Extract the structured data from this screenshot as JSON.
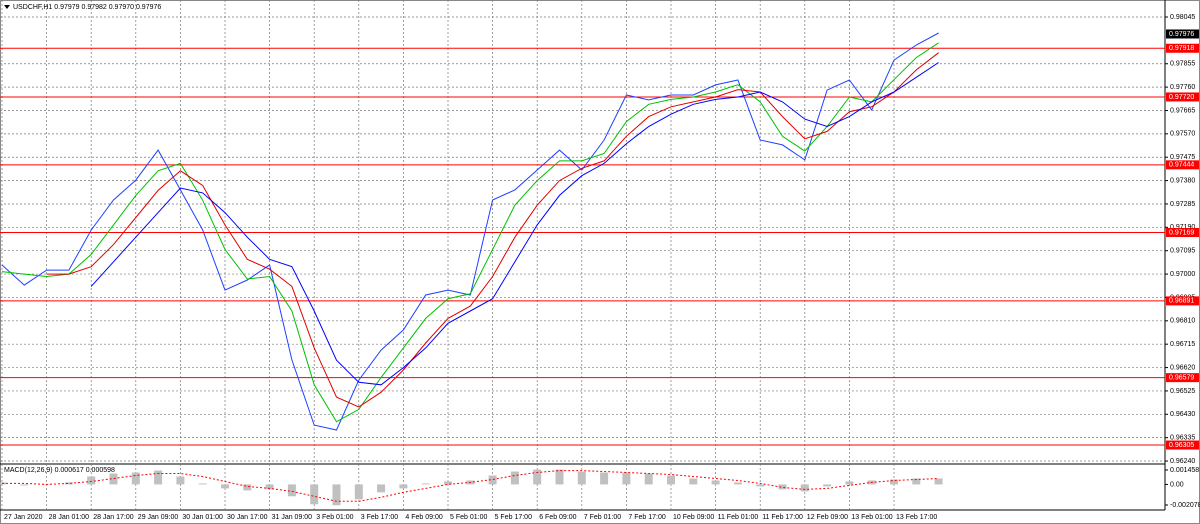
{
  "chart_data": [
    {
      "type": "line",
      "title": "USDCHF,H1  0.97979 0.97982 0.97970 0.97976",
      "categories": [
        "27 Jan 2020",
        null,
        "28 Jan 01:00",
        null,
        "28 Jan 17:00",
        null,
        "29 Jan 09:00",
        null,
        "30 Jan 01:00",
        null,
        "30 Jan 17:00",
        null,
        "31 Jan 09:00",
        null,
        "3 Feb 01:00",
        null,
        "3 Feb 17:00",
        null,
        "4 Feb 09:00",
        null,
        "5 Feb 01:00",
        null,
        "5 Feb 17:00",
        null,
        "6 Feb 09:00",
        null,
        "7 Feb 01:00",
        null,
        "7 Feb 17:00",
        null,
        "10 Feb 09:00",
        null,
        "11 Feb 01:00",
        null,
        "11 Feb 17:00",
        null,
        "12 Feb 09:00",
        null,
        "13 Feb 01:00",
        null,
        "13 Feb 17:00",
        null,
        null
      ],
      "series": [
        {
          "color": "#2040ff",
          "values": [
            0.97037,
            0.96955,
            0.97016,
            0.97016,
            0.97179,
            0.97301,
            0.97382,
            0.97504,
            0.97342,
            0.97179,
            0.96935,
            0.96976,
            0.97037,
            0.96651,
            0.96386,
            0.96366,
            0.96569,
            0.96691,
            0.96773,
            0.96915,
            0.96935,
            0.96915,
            0.97301,
            0.97342,
            0.97423,
            0.97504,
            0.97423,
            0.97545,
            0.97728,
            0.97708,
            0.97728,
            0.97728,
            0.97769,
            0.97789,
            0.97545,
            0.97525,
            0.97464,
            0.97748,
            0.97789,
            0.97667,
            0.9787,
            0.97931,
            0.9798
          ]
        },
        {
          "color": "#00c000",
          "values": [
            0.9701,
            0.97,
            0.9699,
            0.97,
            0.9708,
            0.972,
            0.9732,
            0.9742,
            0.9745,
            0.973,
            0.971,
            0.9698,
            0.9699,
            0.9685,
            0.9655,
            0.964,
            0.9645,
            0.9658,
            0.967,
            0.9682,
            0.969,
            0.9692,
            0.971,
            0.9728,
            0.9738,
            0.9746,
            0.9746,
            0.9749,
            0.9762,
            0.9769,
            0.9771,
            0.9772,
            0.9774,
            0.9777,
            0.977,
            0.9756,
            0.975,
            0.976,
            0.9772,
            0.977,
            0.9779,
            0.9788,
            0.9794
          ]
        },
        {
          "color": "#e00000",
          "values": [
            null,
            null,
            0.97,
            0.97,
            0.9703,
            0.9712,
            0.9723,
            0.9734,
            0.9742,
            0.9736,
            0.972,
            0.9706,
            0.9702,
            0.9695,
            0.967,
            0.965,
            0.9646,
            0.9652,
            0.9661,
            0.9672,
            0.9682,
            0.9687,
            0.9699,
            0.9715,
            0.9728,
            0.9738,
            0.9743,
            0.9746,
            0.9756,
            0.9764,
            0.9768,
            0.977,
            0.9772,
            0.9775,
            0.9774,
            0.9764,
            0.9755,
            0.9758,
            0.9766,
            0.9768,
            0.9774,
            0.9783,
            0.979
          ]
        },
        {
          "color": "#0000ff",
          "values": [
            null,
            null,
            null,
            null,
            0.9695,
            0.9705,
            0.9715,
            0.9725,
            0.9735,
            0.9733,
            0.9725,
            0.9715,
            0.9706,
            0.9703,
            0.9685,
            0.9665,
            0.9656,
            0.9655,
            0.9662,
            0.967,
            0.968,
            0.9685,
            0.969,
            0.9705,
            0.972,
            0.9732,
            0.974,
            0.9745,
            0.9753,
            0.976,
            0.9765,
            0.9769,
            0.9771,
            0.9772,
            0.9774,
            0.977,
            0.9763,
            0.976,
            0.9764,
            0.977,
            0.9774,
            0.978,
            0.9786
          ]
        }
      ],
      "levels": [
        {
          "value": 0.97918,
          "label": "0.97918"
        },
        {
          "value": 0.9772,
          "label": "0.97720"
        },
        {
          "value": 0.97444,
          "label": "0.97444"
        },
        {
          "value": 0.97169,
          "label": "0.97169"
        },
        {
          "value": 0.96891,
          "label": "0.96891"
        },
        {
          "value": 0.96579,
          "label": "0.96579"
        },
        {
          "value": 0.96305,
          "label": "0.96305"
        }
      ],
      "level_color": "#ff0000",
      "current": {
        "value": 0.97976,
        "label": "0.97976"
      },
      "ylim": [
        0.96232,
        0.98106
      ],
      "yticks": [
        {
          "value": 0.98045,
          "label": "0.98045"
        },
        {
          "value": 0.97855,
          "label": "0.97855"
        },
        {
          "value": 0.9776,
          "label": "0.97760"
        },
        {
          "value": 0.97665,
          "label": "0.97665"
        },
        {
          "value": 0.9757,
          "label": "0.97570"
        },
        {
          "value": 0.97475,
          "label": "0.97475"
        },
        {
          "value": 0.9738,
          "label": "0.97380"
        },
        {
          "value": 0.97285,
          "label": "0.97285"
        },
        {
          "value": 0.9719,
          "label": "0.97190"
        },
        {
          "value": 0.97095,
          "label": "0.97095"
        },
        {
          "value": 0.97,
          "label": "0.97000"
        },
        {
          "value": 0.96905,
          "label": "0.96905"
        },
        {
          "value": 0.9681,
          "label": "0.96810"
        },
        {
          "value": 0.96715,
          "label": "0.96715"
        },
        {
          "value": 0.9662,
          "label": "0.96620"
        },
        {
          "value": 0.96525,
          "label": "0.96525"
        },
        {
          "value": 0.9643,
          "label": "0.96430"
        },
        {
          "value": 0.96335,
          "label": "0.96335"
        },
        {
          "value": 0.9624,
          "label": "0.96240"
        }
      ],
      "grid": true
    },
    {
      "type": "macd",
      "title": "MACD(12,26,9) 0.000617 0.000598",
      "series": [
        {
          "color": "#c0c0c0",
          "values": [
            0.0002,
            -0.0001,
            0,
            0.0002,
            0.0008,
            0.0011,
            0.0012,
            0.0014,
            0.0008,
            0.0001,
            -0.0004,
            -0.0006,
            -0.0005,
            -0.0012,
            -0.002,
            -0.0021,
            -0.0015,
            -0.0008,
            -0.0004,
            0.0001,
            0.0003,
            0.0004,
            0.0009,
            0.0013,
            0.0015,
            0.0015,
            0.0013,
            0.0012,
            0.0012,
            0.0011,
            0.0009,
            0.0006,
            0.0004,
            0.0002,
            -0.0002,
            -0.0005,
            -0.0007,
            -0.0002,
            0.0003,
            0.0004,
            0.0005,
            0.0006,
            0.0006
          ]
        },
        {
          "color": "#ff0000",
          "values": [
            0.0001,
            0.0001,
            0,
            0.0001,
            0.0003,
            0.0006,
            0.0009,
            0.0011,
            0.0011,
            0.0008,
            0.0003,
            -0.0002,
            -0.0004,
            -0.0007,
            -0.0012,
            -0.0017,
            -0.0017,
            -0.0013,
            -0.0008,
            -0.0004,
            0,
            0.0002,
            0.0005,
            0.0009,
            0.0012,
            0.0014,
            0.0014,
            0.0013,
            0.0012,
            0.0011,
            0.001,
            0.0008,
            0.0006,
            0.0004,
            0.0001,
            -0.0003,
            -0.0005,
            -0.0004,
            -0.0001,
            0.0002,
            0.0004,
            0.0005,
            0.0006
          ]
        }
      ],
      "ylim": [
        -0.00238,
        0.00186
      ],
      "yticks": [
        {
          "value": 0.001458,
          "label": "0.001458"
        },
        {
          "value": 0,
          "label": "0.00"
        },
        {
          "value": -0.002078,
          "label": "-0.002078"
        }
      ]
    }
  ]
}
